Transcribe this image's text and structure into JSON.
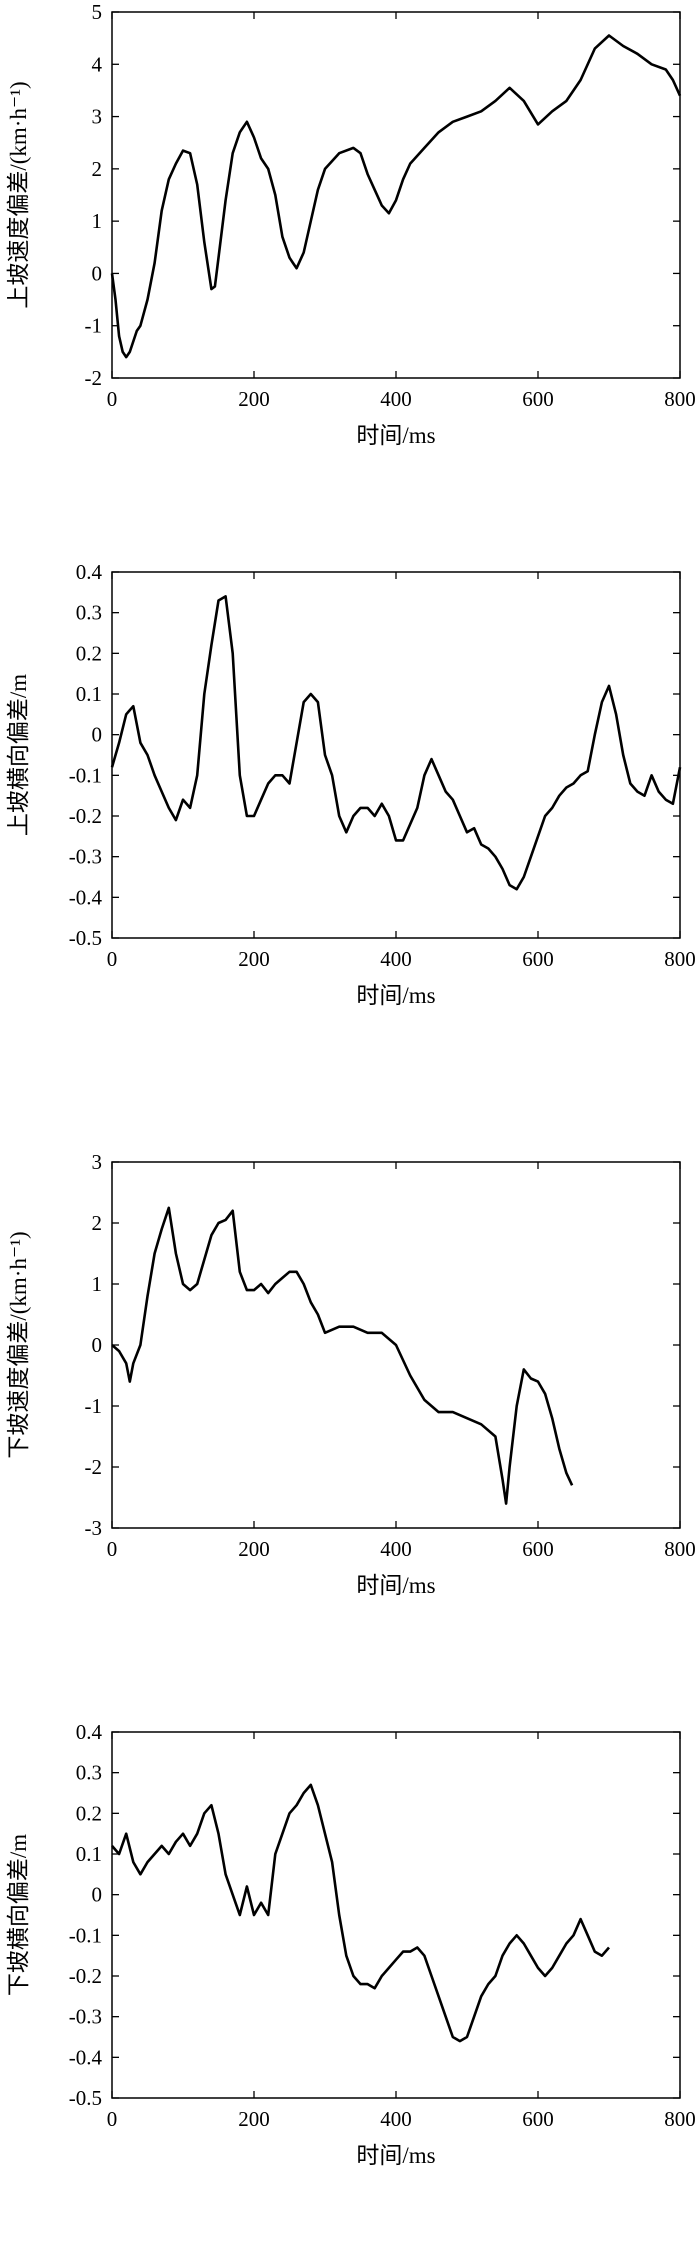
{
  "chart_data": [
    {
      "type": "line",
      "xlabel": "时间/ms",
      "ylabel": "上坡速度偏差/(km·h⁻¹)",
      "xlim": [
        0,
        800
      ],
      "ylim": [
        -2,
        5
      ],
      "xticks": [
        "0",
        "200",
        "400",
        "600",
        "800"
      ],
      "yticks": [
        "-2",
        "-1",
        "0",
        "1",
        "2",
        "3",
        "4",
        "5"
      ],
      "grid": false,
      "series": [
        {
          "x": [
            0,
            5,
            10,
            15,
            20,
            25,
            30,
            35,
            40,
            50,
            60,
            70,
            80,
            90,
            100,
            110,
            120,
            130,
            140,
            145,
            150,
            160,
            170,
            180,
            190,
            200,
            210,
            220,
            230,
            240,
            250,
            255,
            260,
            270,
            280,
            290,
            300,
            320,
            340,
            350,
            360,
            370,
            380,
            390,
            400,
            410,
            420,
            440,
            460,
            480,
            500,
            520,
            540,
            560,
            580,
            600,
            620,
            640,
            660,
            680,
            700,
            720,
            740,
            760,
            780,
            790,
            800
          ],
          "y": [
            0,
            -0.5,
            -1.2,
            -1.5,
            -1.6,
            -1.5,
            -1.3,
            -1.1,
            -1.0,
            -0.5,
            0.2,
            1.2,
            1.8,
            2.1,
            2.35,
            2.3,
            1.7,
            0.6,
            -0.3,
            -0.25,
            0.3,
            1.4,
            2.3,
            2.7,
            2.9,
            2.6,
            2.2,
            2.0,
            1.5,
            0.7,
            0.3,
            0.2,
            0.1,
            0.4,
            1.0,
            1.6,
            2.0,
            2.3,
            2.4,
            2.3,
            1.9,
            1.6,
            1.3,
            1.15,
            1.4,
            1.8,
            2.1,
            2.4,
            2.7,
            2.9,
            3.0,
            3.1,
            3.3,
            3.55,
            3.3,
            2.85,
            3.1,
            3.3,
            3.7,
            4.3,
            4.55,
            4.35,
            4.2,
            4.0,
            3.9,
            3.7,
            3.4
          ]
        }
      ]
    },
    {
      "type": "line",
      "xlabel": "时间/ms",
      "ylabel": "上坡横向偏差/m",
      "xlim": [
        0,
        800
      ],
      "ylim": [
        -0.5,
        0.4
      ],
      "xticks": [
        "0",
        "200",
        "400",
        "600",
        "800"
      ],
      "yticks": [
        "-0.5",
        "-0.4",
        "-0.3",
        "-0.2",
        "-0.1",
        "0",
        "0.1",
        "0.2",
        "0.3",
        "0.4"
      ],
      "grid": false,
      "series": [
        {
          "x": [
            0,
            10,
            20,
            30,
            40,
            50,
            60,
            70,
            80,
            90,
            100,
            110,
            120,
            130,
            140,
            150,
            160,
            170,
            180,
            190,
            200,
            210,
            220,
            230,
            240,
            250,
            260,
            270,
            280,
            290,
            300,
            310,
            320,
            330,
            340,
            350,
            360,
            370,
            380,
            390,
            400,
            410,
            420,
            430,
            440,
            450,
            460,
            470,
            480,
            490,
            500,
            510,
            520,
            530,
            540,
            550,
            560,
            570,
            580,
            590,
            600,
            610,
            620,
            630,
            640,
            650,
            660,
            670,
            680,
            690,
            700,
            710,
            720,
            730,
            740,
            750,
            760,
            770,
            780,
            790,
            800
          ],
          "y": [
            -0.08,
            -0.02,
            0.05,
            0.07,
            -0.02,
            -0.05,
            -0.1,
            -0.14,
            -0.18,
            -0.21,
            -0.16,
            -0.18,
            -0.1,
            0.1,
            0.22,
            0.33,
            0.34,
            0.2,
            -0.1,
            -0.2,
            -0.2,
            -0.16,
            -0.12,
            -0.1,
            -0.1,
            -0.12,
            -0.02,
            0.08,
            0.1,
            0.08,
            -0.05,
            -0.1,
            -0.2,
            -0.24,
            -0.2,
            -0.18,
            -0.18,
            -0.2,
            -0.17,
            -0.2,
            -0.26,
            -0.26,
            -0.22,
            -0.18,
            -0.1,
            -0.06,
            -0.1,
            -0.14,
            -0.16,
            -0.2,
            -0.24,
            -0.23,
            -0.27,
            -0.28,
            -0.3,
            -0.33,
            -0.37,
            -0.38,
            -0.35,
            -0.3,
            -0.25,
            -0.2,
            -0.18,
            -0.15,
            -0.13,
            -0.12,
            -0.1,
            -0.09,
            0.0,
            0.08,
            0.12,
            0.05,
            -0.05,
            -0.12,
            -0.14,
            -0.15,
            -0.1,
            -0.14,
            -0.16,
            -0.17,
            -0.08
          ]
        }
      ]
    },
    {
      "type": "line",
      "xlabel": "时间/ms",
      "ylabel": "下坡速度偏差/(km·h⁻¹)",
      "xlim": [
        0,
        800
      ],
      "ylim": [
        -3,
        3
      ],
      "xticks": [
        "0",
        "200",
        "400",
        "600",
        "800"
      ],
      "yticks": [
        "-3",
        "-2",
        "-1",
        "0",
        "1",
        "2",
        "3"
      ],
      "grid": false,
      "series": [
        {
          "x": [
            0,
            10,
            20,
            25,
            30,
            40,
            50,
            60,
            70,
            80,
            90,
            100,
            110,
            120,
            130,
            140,
            150,
            160,
            170,
            180,
            190,
            200,
            210,
            220,
            230,
            240,
            250,
            260,
            270,
            280,
            290,
            300,
            320,
            340,
            360,
            380,
            400,
            420,
            440,
            460,
            480,
            500,
            520,
            540,
            550,
            555,
            560,
            570,
            580,
            590,
            600,
            610,
            620,
            630,
            640,
            648
          ],
          "y": [
            0.0,
            -0.1,
            -0.3,
            -0.6,
            -0.3,
            0.0,
            0.8,
            1.5,
            1.9,
            2.25,
            1.5,
            1.0,
            0.9,
            1.0,
            1.4,
            1.8,
            2.0,
            2.05,
            2.2,
            1.2,
            0.9,
            0.9,
            1.0,
            0.85,
            1.0,
            1.1,
            1.2,
            1.2,
            1.0,
            0.7,
            0.5,
            0.2,
            0.3,
            0.3,
            0.2,
            0.2,
            0.0,
            -0.5,
            -0.9,
            -1.1,
            -1.1,
            -1.2,
            -1.3,
            -1.5,
            -2.2,
            -2.6,
            -2.0,
            -1.0,
            -0.4,
            -0.55,
            -0.6,
            -0.8,
            -1.2,
            -1.7,
            -2.1,
            -2.3
          ]
        }
      ]
    },
    {
      "type": "line",
      "xlabel": "时间/ms",
      "ylabel": "下坡横向偏差/m",
      "xlim": [
        0,
        800
      ],
      "ylim": [
        -0.5,
        0.4
      ],
      "xticks": [
        "0",
        "200",
        "400",
        "600",
        "800"
      ],
      "yticks": [
        "-0.5",
        "-0.4",
        "-0.3",
        "-0.2",
        "-0.1",
        "0",
        "0.1",
        "0.2",
        "0.3",
        "0.4"
      ],
      "grid": false,
      "series": [
        {
          "x": [
            0,
            10,
            20,
            30,
            40,
            50,
            60,
            70,
            80,
            90,
            100,
            110,
            120,
            130,
            140,
            150,
            160,
            170,
            180,
            190,
            200,
            210,
            220,
            230,
            240,
            250,
            260,
            270,
            280,
            290,
            300,
            310,
            320,
            330,
            340,
            350,
            360,
            370,
            380,
            390,
            400,
            410,
            420,
            430,
            440,
            450,
            460,
            470,
            480,
            490,
            500,
            510,
            520,
            530,
            540,
            550,
            560,
            570,
            580,
            590,
            600,
            610,
            620,
            630,
            640,
            650,
            660,
            670,
            680,
            690,
            700
          ],
          "y": [
            0.12,
            0.1,
            0.15,
            0.08,
            0.05,
            0.08,
            0.1,
            0.12,
            0.1,
            0.13,
            0.15,
            0.12,
            0.15,
            0.2,
            0.22,
            0.15,
            0.05,
            0.0,
            -0.05,
            0.02,
            -0.05,
            -0.02,
            -0.05,
            0.1,
            0.15,
            0.2,
            0.22,
            0.25,
            0.27,
            0.22,
            0.15,
            0.08,
            -0.05,
            -0.15,
            -0.2,
            -0.22,
            -0.22,
            -0.23,
            -0.2,
            -0.18,
            -0.16,
            -0.14,
            -0.14,
            -0.13,
            -0.15,
            -0.2,
            -0.25,
            -0.3,
            -0.35,
            -0.36,
            -0.35,
            -0.3,
            -0.25,
            -0.22,
            -0.2,
            -0.15,
            -0.12,
            -0.1,
            -0.12,
            -0.15,
            -0.18,
            -0.2,
            -0.18,
            -0.15,
            -0.12,
            -0.1,
            -0.06,
            -0.1,
            -0.14,
            -0.15,
            -0.13
          ]
        }
      ]
    }
  ]
}
